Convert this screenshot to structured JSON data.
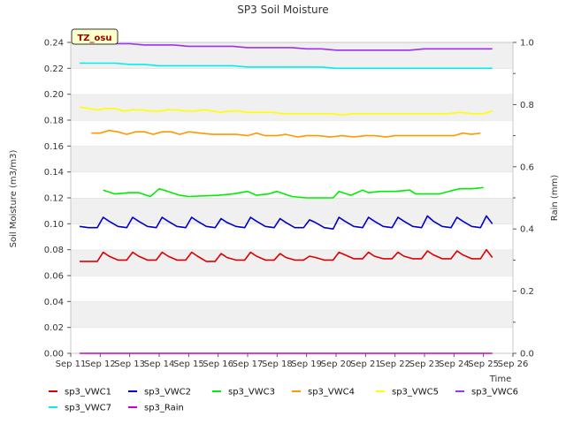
{
  "chart_data": {
    "type": "line",
    "title": "SP3 Soil Moisture",
    "badge": "TZ_osu",
    "xlabel": "Time",
    "ylabel": "Soil Moisture (m3/m3)",
    "y2label": "Rain (mm)",
    "xlim": [
      11,
      26
    ],
    "ylim": [
      0,
      0.24
    ],
    "y2lim": [
      0,
      1.0
    ],
    "x_ticks": [
      "Sep 11",
      "Sep 12",
      "Sep 13",
      "Sep 14",
      "Sep 15",
      "Sep 16",
      "Sep 17",
      "Sep 18",
      "Sep 19",
      "Sep 20",
      "Sep 21",
      "Sep 22",
      "Sep 23",
      "Sep 24",
      "Sep 25",
      "Sep 26"
    ],
    "y_ticks": [
      "0.00",
      "0.02",
      "0.04",
      "0.06",
      "0.08",
      "0.10",
      "0.12",
      "0.14",
      "0.16",
      "0.18",
      "0.20",
      "0.22",
      "0.24"
    ],
    "y2_ticks": [
      "0.0",
      "0.2",
      "0.4",
      "0.6",
      "0.8",
      "1.0"
    ],
    "grid": "horizontal alternating bands",
    "legend_position": "bottom",
    "series": [
      {
        "name": "sp3_VWC1",
        "color": "#dd0000",
        "axis": "left",
        "x": [
          11.3,
          11.6,
          11.9,
          12.1,
          12.3,
          12.6,
          12.9,
          13.1,
          13.3,
          13.6,
          13.9,
          14.1,
          14.3,
          14.6,
          14.9,
          15.1,
          15.3,
          15.6,
          15.9,
          16.1,
          16.3,
          16.6,
          16.9,
          17.1,
          17.3,
          17.6,
          17.9,
          18.1,
          18.3,
          18.6,
          18.9,
          19.1,
          19.3,
          19.6,
          19.9,
          20.1,
          20.3,
          20.6,
          20.9,
          21.1,
          21.3,
          21.6,
          21.9,
          22.1,
          22.3,
          22.6,
          22.9,
          23.1,
          23.3,
          23.6,
          23.9,
          24.1,
          24.3,
          24.6,
          24.9,
          25.1,
          25.3
        ],
        "y": [
          0.071,
          0.071,
          0.071,
          0.078,
          0.075,
          0.072,
          0.072,
          0.078,
          0.075,
          0.072,
          0.072,
          0.078,
          0.075,
          0.072,
          0.072,
          0.078,
          0.075,
          0.071,
          0.071,
          0.077,
          0.074,
          0.072,
          0.072,
          0.078,
          0.075,
          0.072,
          0.072,
          0.077,
          0.074,
          0.072,
          0.072,
          0.075,
          0.074,
          0.072,
          0.072,
          0.078,
          0.076,
          0.073,
          0.073,
          0.078,
          0.075,
          0.073,
          0.073,
          0.078,
          0.075,
          0.073,
          0.073,
          0.079,
          0.076,
          0.073,
          0.073,
          0.079,
          0.076,
          0.073,
          0.073,
          0.08,
          0.074
        ]
      },
      {
        "name": "sp3_VWC2",
        "color": "#0000cc",
        "axis": "left",
        "x": [
          11.3,
          11.6,
          11.9,
          12.1,
          12.3,
          12.6,
          12.9,
          13.1,
          13.3,
          13.6,
          13.9,
          14.1,
          14.3,
          14.6,
          14.9,
          15.1,
          15.3,
          15.6,
          15.9,
          16.1,
          16.3,
          16.6,
          16.9,
          17.1,
          17.3,
          17.6,
          17.9,
          18.1,
          18.3,
          18.6,
          18.9,
          19.1,
          19.3,
          19.6,
          19.9,
          20.1,
          20.3,
          20.6,
          20.9,
          21.1,
          21.3,
          21.6,
          21.9,
          22.1,
          22.3,
          22.6,
          22.9,
          23.1,
          23.3,
          23.6,
          23.9,
          24.1,
          24.3,
          24.6,
          24.9,
          25.1,
          25.3
        ],
        "y": [
          0.098,
          0.097,
          0.097,
          0.105,
          0.102,
          0.098,
          0.097,
          0.105,
          0.102,
          0.098,
          0.097,
          0.105,
          0.102,
          0.098,
          0.097,
          0.105,
          0.102,
          0.098,
          0.097,
          0.104,
          0.101,
          0.098,
          0.097,
          0.105,
          0.102,
          0.098,
          0.097,
          0.104,
          0.101,
          0.097,
          0.097,
          0.103,
          0.101,
          0.097,
          0.096,
          0.105,
          0.102,
          0.098,
          0.097,
          0.105,
          0.102,
          0.098,
          0.097,
          0.105,
          0.102,
          0.098,
          0.097,
          0.106,
          0.102,
          0.098,
          0.097,
          0.105,
          0.102,
          0.098,
          0.097,
          0.106,
          0.1
        ]
      },
      {
        "name": "sp3_VWC3",
        "color": "#00ee00",
        "axis": "left",
        "x": [
          12.1,
          12.5,
          13.0,
          13.3,
          13.7,
          14.0,
          14.3,
          14.7,
          15.0,
          16.0,
          16.5,
          17.0,
          17.3,
          17.7,
          18.0,
          18.5,
          19.0,
          19.5,
          19.9,
          20.1,
          20.5,
          20.9,
          21.1,
          21.5,
          22.0,
          22.5,
          22.7,
          23.0,
          23.5,
          24.0,
          24.2,
          24.6,
          25.0
        ],
        "y": [
          0.126,
          0.123,
          0.124,
          0.124,
          0.121,
          0.127,
          0.125,
          0.122,
          0.121,
          0.122,
          0.123,
          0.125,
          0.122,
          0.123,
          0.125,
          0.121,
          0.12,
          0.12,
          0.12,
          0.125,
          0.122,
          0.126,
          0.124,
          0.125,
          0.125,
          0.126,
          0.123,
          0.123,
          0.123,
          0.126,
          0.127,
          0.127,
          0.128
        ]
      },
      {
        "name": "sp3_VWC4",
        "color": "#ff9900",
        "axis": "left",
        "x": [
          11.7,
          12.0,
          12.3,
          12.6,
          12.9,
          13.2,
          13.5,
          13.8,
          14.1,
          14.4,
          14.7,
          15.0,
          15.4,
          15.8,
          16.2,
          16.6,
          17.0,
          17.3,
          17.6,
          18.0,
          18.3,
          18.7,
          19.0,
          19.4,
          19.8,
          20.2,
          20.6,
          21.0,
          21.3,
          21.7,
          22.0,
          22.4,
          22.8,
          23.2,
          23.6,
          24.0,
          24.3,
          24.6,
          24.9
        ],
        "y": [
          0.17,
          0.17,
          0.172,
          0.171,
          0.169,
          0.171,
          0.171,
          0.169,
          0.171,
          0.171,
          0.169,
          0.171,
          0.17,
          0.169,
          0.169,
          0.169,
          0.168,
          0.17,
          0.168,
          0.168,
          0.169,
          0.167,
          0.168,
          0.168,
          0.167,
          0.168,
          0.167,
          0.168,
          0.168,
          0.167,
          0.168,
          0.168,
          0.168,
          0.168,
          0.168,
          0.168,
          0.17,
          0.169,
          0.17
        ]
      },
      {
        "name": "sp3_VWC5",
        "color": "#ffff00",
        "axis": "left",
        "x": [
          11.3,
          11.6,
          11.9,
          12.2,
          12.5,
          12.8,
          13.1,
          13.4,
          13.7,
          14.0,
          14.3,
          14.6,
          14.9,
          15.2,
          15.5,
          15.8,
          16.1,
          16.4,
          16.7,
          17.0,
          17.4,
          17.8,
          18.2,
          18.6,
          19.0,
          19.4,
          19.8,
          20.2,
          20.6,
          21.0,
          21.4,
          21.8,
          22.2,
          22.6,
          23.0,
          23.4,
          23.8,
          24.2,
          24.6,
          25.0,
          25.3
        ],
        "y": [
          0.19,
          0.189,
          0.188,
          0.189,
          0.189,
          0.187,
          0.188,
          0.188,
          0.187,
          0.187,
          0.188,
          0.188,
          0.187,
          0.187,
          0.188,
          0.187,
          0.186,
          0.187,
          0.187,
          0.186,
          0.186,
          0.186,
          0.185,
          0.185,
          0.185,
          0.185,
          0.185,
          0.184,
          0.185,
          0.185,
          0.185,
          0.185,
          0.185,
          0.185,
          0.185,
          0.185,
          0.185,
          0.186,
          0.185,
          0.185,
          0.187
        ]
      },
      {
        "name": "sp3_VWC6",
        "color": "#9933ee",
        "axis": "left",
        "x": [
          11.3,
          12.0,
          12.5,
          13.0,
          13.5,
          14.0,
          14.5,
          15.0,
          15.5,
          16.0,
          16.5,
          17.0,
          17.5,
          18.0,
          18.5,
          19.0,
          19.5,
          20.0,
          20.5,
          21.0,
          21.5,
          22.0,
          22.5,
          23.0,
          23.5,
          24.0,
          24.5,
          25.0,
          25.3
        ],
        "y": [
          0.241,
          0.24,
          0.239,
          0.239,
          0.238,
          0.238,
          0.238,
          0.237,
          0.237,
          0.237,
          0.237,
          0.236,
          0.236,
          0.236,
          0.236,
          0.235,
          0.235,
          0.234,
          0.234,
          0.234,
          0.234,
          0.234,
          0.234,
          0.235,
          0.235,
          0.235,
          0.235,
          0.235,
          0.235
        ]
      },
      {
        "name": "sp3_VWC7",
        "color": "#00eeee",
        "axis": "left",
        "x": [
          11.3,
          12.0,
          12.5,
          13.0,
          13.5,
          14.0,
          14.5,
          15.0,
          15.5,
          16.0,
          16.5,
          17.0,
          17.5,
          18.0,
          18.5,
          19.0,
          19.5,
          20.0,
          20.5,
          21.0,
          21.5,
          22.0,
          22.5,
          23.0,
          23.5,
          24.0,
          24.5,
          25.0,
          25.3
        ],
        "y": [
          0.224,
          0.224,
          0.224,
          0.223,
          0.223,
          0.222,
          0.222,
          0.222,
          0.222,
          0.222,
          0.222,
          0.221,
          0.221,
          0.221,
          0.221,
          0.221,
          0.221,
          0.22,
          0.22,
          0.22,
          0.22,
          0.22,
          0.22,
          0.22,
          0.22,
          0.22,
          0.22,
          0.22,
          0.22
        ]
      },
      {
        "name": "sp3_Rain",
        "color": "#cc00cc",
        "axis": "right",
        "x": [
          11.3,
          25.3
        ],
        "y": [
          0.0,
          0.0
        ]
      }
    ]
  }
}
